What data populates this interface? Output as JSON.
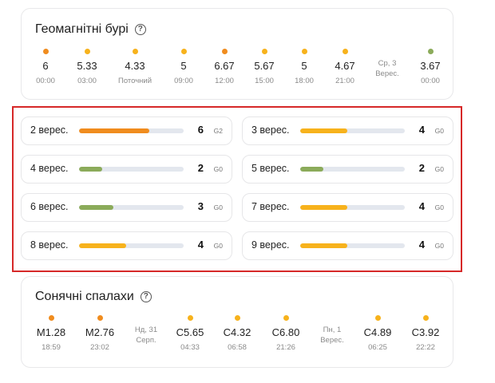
{
  "colors": {
    "orange": "#f08c1e",
    "amber": "#f7b21c",
    "green": "#8bab5a",
    "track": "#e3e7ee"
  },
  "storms": {
    "title": "Геомагнітні бурі",
    "help_icon": "question-circle-icon",
    "points": [
      {
        "value": "6",
        "time": "00:00",
        "color": "orange"
      },
      {
        "value": "5.33",
        "time": "03:00",
        "color": "amber"
      },
      {
        "value": "4.33",
        "time": "Поточний",
        "color": "amber"
      },
      {
        "value": "5",
        "time": "09:00",
        "color": "amber"
      },
      {
        "value": "6.67",
        "time": "12:00",
        "color": "orange"
      },
      {
        "value": "5.67",
        "time": "15:00",
        "color": "amber"
      },
      {
        "value": "5",
        "time": "18:00",
        "color": "amber"
      },
      {
        "value": "4.67",
        "time": "21:00",
        "color": "amber"
      },
      {
        "day_label_1": "Ср, 3",
        "day_label_2": "Верес."
      },
      {
        "value": "3.67",
        "time": "00:00",
        "color": "green"
      }
    ]
  },
  "forecast": [
    {
      "date": "2 верес.",
      "kp": "6",
      "g": "G2",
      "level": 0.67,
      "color": "orange"
    },
    {
      "date": "3 верес.",
      "kp": "4",
      "g": "G0",
      "level": 0.45,
      "color": "amber"
    },
    {
      "date": "4 верес.",
      "kp": "2",
      "g": "G0",
      "level": 0.22,
      "color": "green"
    },
    {
      "date": "5 верес.",
      "kp": "2",
      "g": "G0",
      "level": 0.22,
      "color": "green"
    },
    {
      "date": "6 верес.",
      "kp": "3",
      "g": "G0",
      "level": 0.33,
      "color": "green"
    },
    {
      "date": "7 верес.",
      "kp": "4",
      "g": "G0",
      "level": 0.45,
      "color": "amber"
    },
    {
      "date": "8 верес.",
      "kp": "4",
      "g": "G0",
      "level": 0.45,
      "color": "amber"
    },
    {
      "date": "9 верес.",
      "kp": "4",
      "g": "G0",
      "level": 0.45,
      "color": "amber"
    }
  ],
  "flares": {
    "title": "Сонячні спалахи",
    "help_icon": "question-circle-icon",
    "points": [
      {
        "value": "M1.28",
        "time": "18:59",
        "color": "orange"
      },
      {
        "value": "M2.76",
        "time": "23:02",
        "color": "orange"
      },
      {
        "day_label_1": "Нд, 31",
        "day_label_2": "Серп."
      },
      {
        "value": "C5.65",
        "time": "04:33",
        "color": "amber"
      },
      {
        "value": "C4.32",
        "time": "06:58",
        "color": "amber"
      },
      {
        "value": "C6.80",
        "time": "21:26",
        "color": "amber"
      },
      {
        "day_label_1": "Пн, 1",
        "day_label_2": "Верес."
      },
      {
        "value": "C4.89",
        "time": "06:25",
        "color": "amber"
      },
      {
        "value": "C3.92",
        "time": "22:22",
        "color": "amber"
      }
    ]
  }
}
